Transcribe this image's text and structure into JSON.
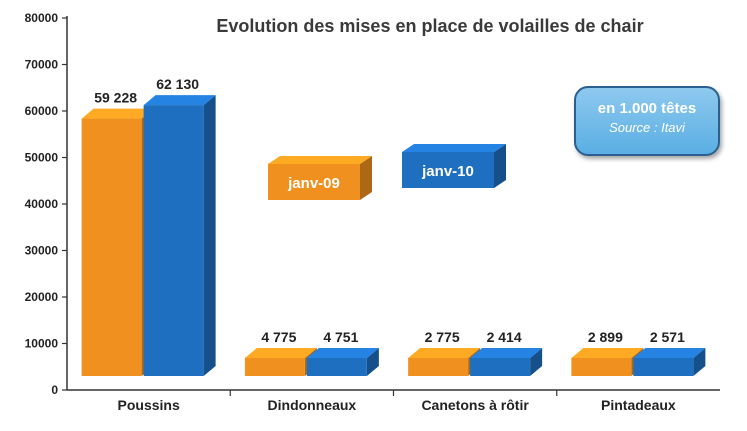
{
  "chart_data": {
    "type": "bar",
    "title": "Evolution des mises en place de volailles de chair",
    "unit_note": "en 1.000 têtes",
    "source_note": "Source : Itavi",
    "categories": [
      "Poussins",
      "Dindonneaux",
      "Canetons à rôtir",
      "Pintadeaux"
    ],
    "series": [
      {
        "name": "janv-09",
        "values": [
          59228,
          4775,
          2775,
          2899
        ],
        "labels": [
          "59 228",
          "4 775",
          "2 775",
          "2 899"
        ],
        "color": "#f0901e"
      },
      {
        "name": "janv-10",
        "values": [
          62130,
          4751,
          2414,
          2571
        ],
        "labels": [
          "62 130",
          "4 751",
          "2 414",
          "2 571"
        ],
        "color": "#1f6fc1"
      }
    ],
    "yticks": [
      "0",
      "10000",
      "20000",
      "30000",
      "40000",
      "50000",
      "60000",
      "70000",
      "80000"
    ],
    "ylim": [
      0,
      80000
    ],
    "xlabel": "",
    "ylabel": "",
    "grid": false,
    "legend": "center-left, inside plot"
  }
}
